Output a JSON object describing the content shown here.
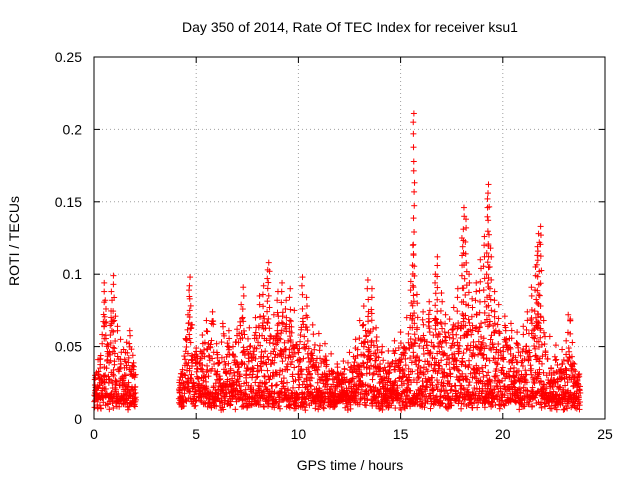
{
  "chart_data": {
    "type": "scatter",
    "title": "Day 350 of 2014, Rate Of TEC Index for receiver ksu1",
    "xlabel": "GPS time / hours",
    "ylabel": "ROTI / TECUs",
    "xlim": [
      0,
      25
    ],
    "ylim": [
      0,
      0.25
    ],
    "xticks": [
      0,
      5,
      10,
      15,
      20,
      25
    ],
    "xtick_labels": [
      "0",
      "5",
      "10",
      "15",
      "20",
      "25"
    ],
    "yticks": [
      0,
      0.05,
      0.1,
      0.15,
      0.2,
      0.25
    ],
    "ytick_labels": [
      "0",
      "0.05",
      "0.1",
      "0.15",
      "0.2",
      "0.25"
    ],
    "grid": true,
    "marker": "+",
    "color": "#ff0000",
    "series": [
      {
        "name": "ROTI",
        "data_gaps_hours": [
          [
            2.05,
            4.15
          ]
        ],
        "points": [
          [
            0.05,
            0.018
          ],
          [
            0.12,
            0.032
          ],
          [
            0.2,
            0.041
          ],
          [
            0.3,
            0.025
          ],
          [
            0.4,
            0.052
          ],
          [
            0.5,
            0.094
          ],
          [
            0.55,
            0.082
          ],
          [
            0.6,
            0.067
          ],
          [
            0.7,
            0.045
          ],
          [
            0.8,
            0.058
          ],
          [
            0.85,
            0.088
          ],
          [
            0.95,
            0.099
          ],
          [
            1.05,
            0.071
          ],
          [
            1.15,
            0.064
          ],
          [
            1.3,
            0.055
          ],
          [
            1.45,
            0.048
          ],
          [
            1.6,
            0.053
          ],
          [
            1.75,
            0.061
          ],
          [
            1.9,
            0.044
          ],
          [
            2.0,
            0.022
          ],
          [
            4.2,
            0.018
          ],
          [
            4.35,
            0.031
          ],
          [
            4.5,
            0.055
          ],
          [
            4.6,
            0.072
          ],
          [
            4.65,
            0.089
          ],
          [
            4.7,
            0.098
          ],
          [
            4.8,
            0.065
          ],
          [
            5.0,
            0.049
          ],
          [
            5.3,
            0.058
          ],
          [
            5.5,
            0.068
          ],
          [
            5.8,
            0.074
          ],
          [
            6.0,
            0.052
          ],
          [
            6.3,
            0.066
          ],
          [
            6.6,
            0.061
          ],
          [
            6.8,
            0.05
          ],
          [
            7.0,
            0.062
          ],
          [
            7.2,
            0.079
          ],
          [
            7.3,
            0.091
          ],
          [
            7.6,
            0.063
          ],
          [
            7.9,
            0.07
          ],
          [
            8.1,
            0.085
          ],
          [
            8.3,
            0.092
          ],
          [
            8.5,
            0.103
          ],
          [
            8.55,
            0.108
          ],
          [
            8.8,
            0.072
          ],
          [
            9.0,
            0.088
          ],
          [
            9.2,
            0.094
          ],
          [
            9.4,
            0.082
          ],
          [
            9.6,
            0.09
          ],
          [
            9.8,
            0.075
          ],
          [
            10.2,
            0.098
          ],
          [
            10.4,
            0.084
          ],
          [
            10.7,
            0.065
          ],
          [
            11.0,
            0.059
          ],
          [
            11.3,
            0.052
          ],
          [
            11.6,
            0.045
          ],
          [
            11.9,
            0.038
          ],
          [
            12.2,
            0.04
          ],
          [
            12.5,
            0.046
          ],
          [
            12.8,
            0.055
          ],
          [
            13.0,
            0.068
          ],
          [
            13.2,
            0.078
          ],
          [
            13.4,
            0.096
          ],
          [
            13.6,
            0.09
          ],
          [
            13.8,
            0.063
          ],
          [
            14.1,
            0.05
          ],
          [
            14.4,
            0.047
          ],
          [
            14.7,
            0.054
          ],
          [
            15.0,
            0.06
          ],
          [
            15.3,
            0.07
          ],
          [
            15.5,
            0.095
          ],
          [
            15.6,
            0.12
          ],
          [
            15.65,
            0.211
          ],
          [
            15.8,
            0.086
          ],
          [
            16.1,
            0.074
          ],
          [
            16.4,
            0.081
          ],
          [
            16.7,
            0.1
          ],
          [
            16.8,
            0.112
          ],
          [
            17.0,
            0.087
          ],
          [
            17.2,
            0.072
          ],
          [
            17.4,
            0.069
          ],
          [
            17.6,
            0.077
          ],
          [
            17.8,
            0.09
          ],
          [
            18.0,
            0.125
          ],
          [
            18.1,
            0.146
          ],
          [
            18.2,
            0.138
          ],
          [
            18.35,
            0.1
          ],
          [
            18.5,
            0.083
          ],
          [
            18.7,
            0.094
          ],
          [
            18.9,
            0.11
          ],
          [
            19.1,
            0.126
          ],
          [
            19.25,
            0.152
          ],
          [
            19.3,
            0.162
          ],
          [
            19.4,
            0.118
          ],
          [
            19.6,
            0.088
          ],
          [
            19.8,
            0.079
          ],
          [
            20.1,
            0.071
          ],
          [
            20.4,
            0.066
          ],
          [
            20.7,
            0.06
          ],
          [
            21.0,
            0.064
          ],
          [
            21.2,
            0.074
          ],
          [
            21.4,
            0.091
          ],
          [
            21.6,
            0.105
          ],
          [
            21.7,
            0.119
          ],
          [
            21.75,
            0.128
          ],
          [
            21.85,
            0.133
          ],
          [
            22.0,
            0.068
          ],
          [
            22.3,
            0.057
          ],
          [
            22.6,
            0.051
          ],
          [
            22.9,
            0.048
          ],
          [
            23.1,
            0.054
          ],
          [
            23.2,
            0.072
          ],
          [
            23.3,
            0.069
          ],
          [
            23.5,
            0.038
          ],
          [
            23.75,
            0.02
          ]
        ]
      }
    ]
  }
}
